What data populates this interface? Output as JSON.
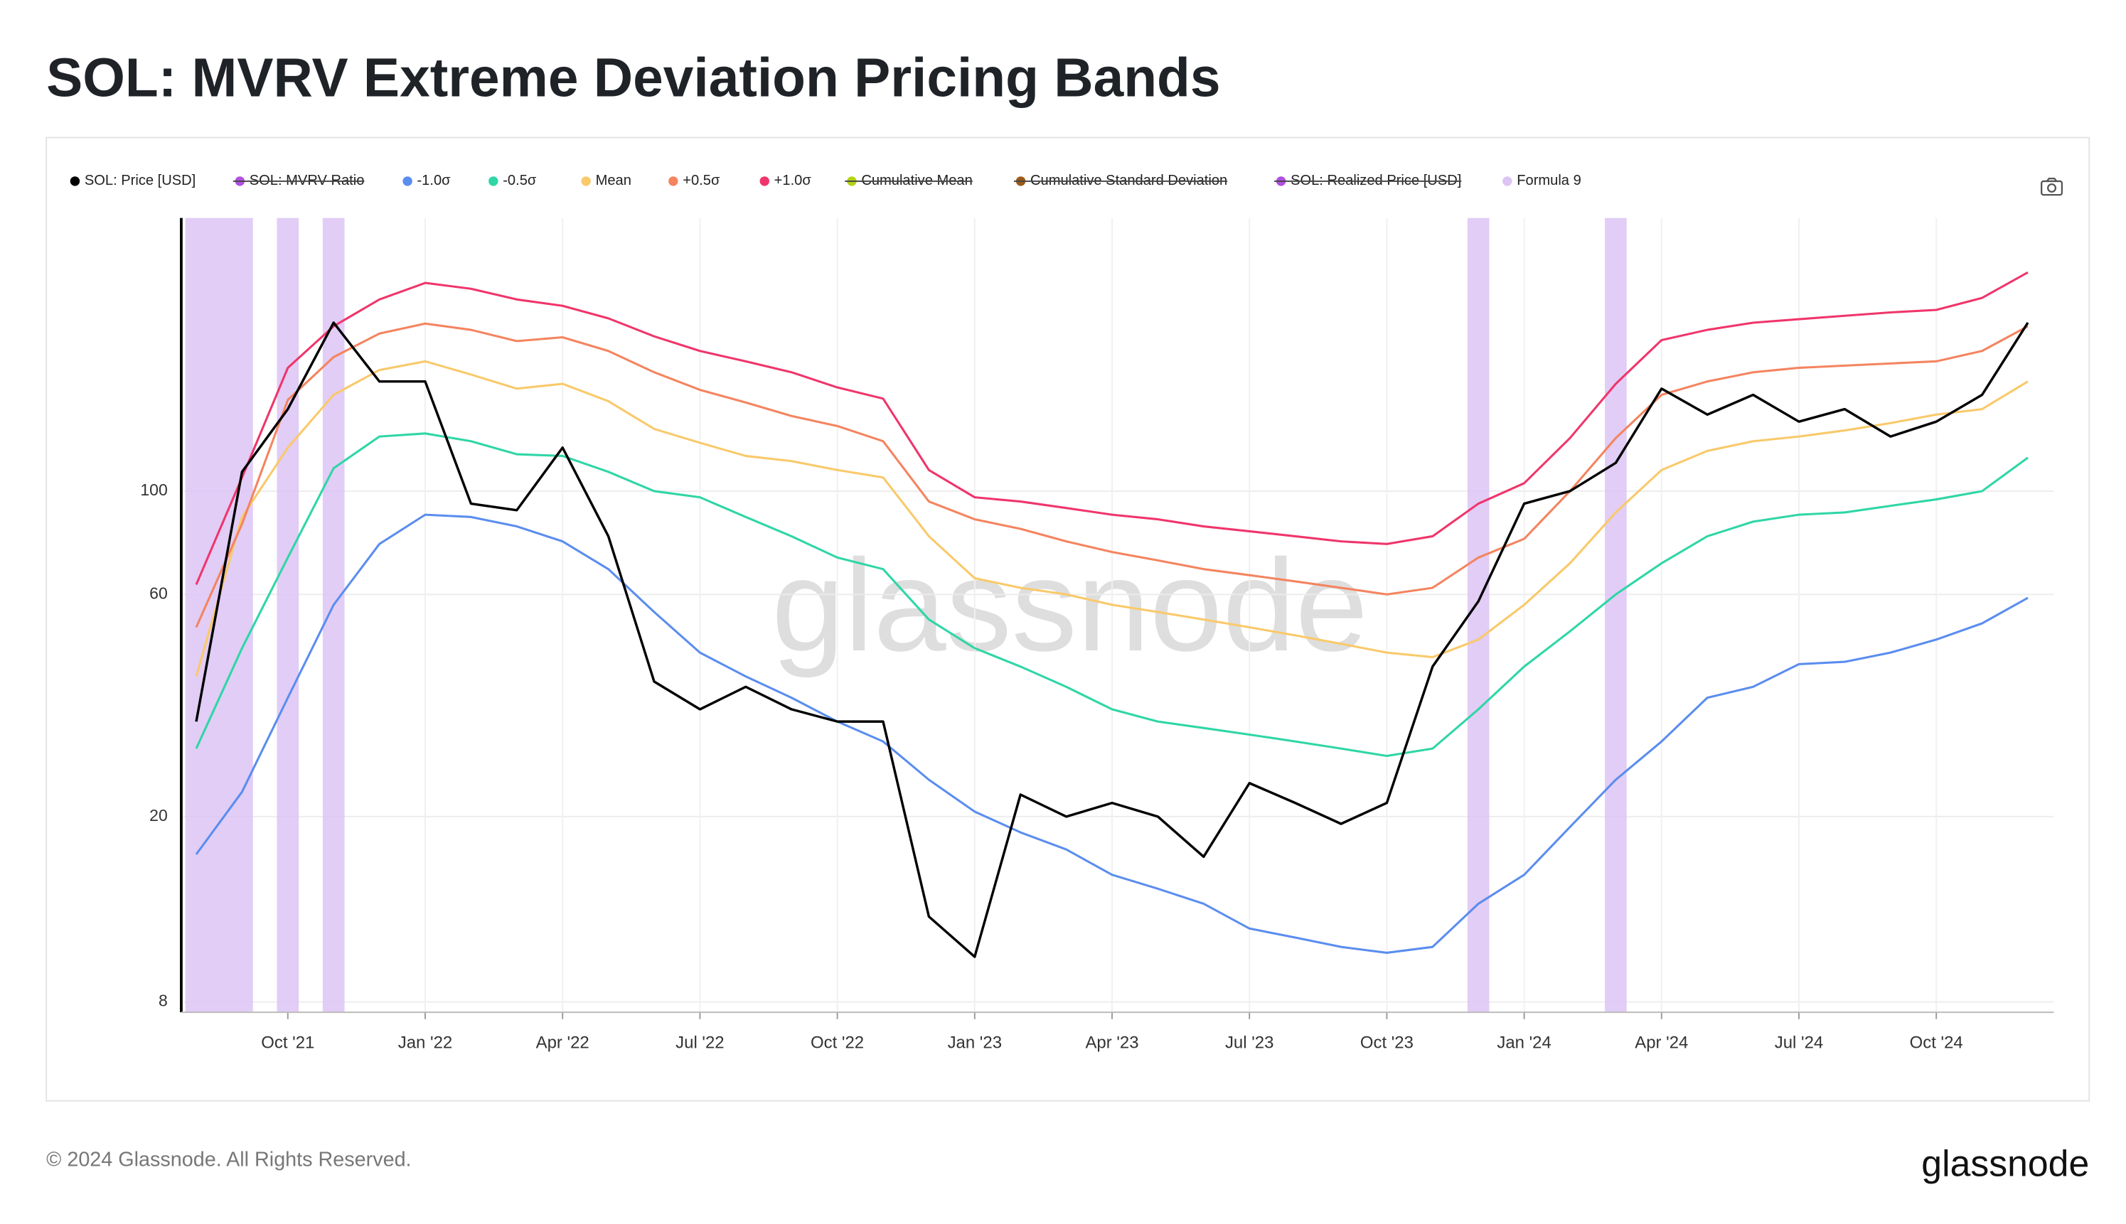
{
  "chart_data": {
    "type": "line",
    "title": "SOL: MVRV Extreme Deviation Pricing Bands",
    "footer": "© 2024 Glassnode. All Rights Reserved.",
    "brand": "glassnode",
    "watermark": "glassnode",
    "log_y": true,
    "grid": true,
    "legend": "top-left",
    "x": [
      "Aug '21",
      "Sep '21",
      "Oct '21",
      "Nov '21",
      "Dec '21",
      "Jan '22",
      "Feb '22",
      "Mar '22",
      "Apr '22",
      "May '22",
      "Jun '22",
      "Jul '22",
      "Aug '22",
      "Sep '22",
      "Oct '22",
      "Nov '22",
      "Dec '22",
      "Jan '23",
      "Feb '23",
      "Mar '23",
      "Apr '23",
      "May '23",
      "Jun '23",
      "Jul '23",
      "Aug '23",
      "Sep '23",
      "Oct '23",
      "Nov '23",
      "Dec '23",
      "Jan '24",
      "Feb '24",
      "Mar '24",
      "Apr '24",
      "May '24",
      "Jun '24",
      "Jul '24",
      "Aug '24",
      "Sep '24",
      "Oct '24",
      "Nov '24",
      "Dec '24"
    ],
    "xticks": [
      "Oct '21",
      "Jan '22",
      "Apr '22",
      "Jul '22",
      "Oct '22",
      "Jan '23",
      "Apr '23",
      "Jul '23",
      "Oct '23",
      "Jan '24",
      "Apr '24",
      "Jul '24",
      "Oct '24"
    ],
    "ylim": [
      7.6,
      386
    ],
    "yticks": [
      8,
      20,
      60,
      100
    ],
    "series": [
      {
        "name": "SOL: Price [USD]",
        "color": "#000000",
        "values": [
          32,
          110,
          150,
          230,
          172,
          172,
          94,
          91,
          124,
          80,
          39,
          34,
          38,
          34,
          32,
          32,
          12.2,
          10,
          22.3,
          20,
          21.4,
          20,
          16.4,
          23.6,
          21.4,
          19.3,
          21.4,
          42,
          58,
          94,
          100,
          115,
          166,
          146,
          161,
          141,
          150,
          131,
          141,
          161,
          230
        ]
      },
      {
        "name": "SOL: MVRV Ratio",
        "color": "#b04fe0",
        "hidden": true
      },
      {
        "name": "-1.0σ",
        "color": "#5b8def",
        "values": [
          16.6,
          22.6,
          36,
          57,
          77,
          89,
          88,
          84,
          78,
          68,
          55,
          45,
          40,
          36,
          32,
          29,
          24,
          20.5,
          18.5,
          17,
          15,
          14,
          13,
          11.5,
          11,
          10.5,
          10.2,
          10.5,
          13,
          15,
          19,
          24,
          29,
          36,
          38,
          42.5,
          43,
          45,
          48,
          52,
          59
        ]
      },
      {
        "name": "-0.5σ",
        "color": "#2fd6a6",
        "values": [
          28,
          46,
          72,
          112,
          131,
          133,
          128,
          120,
          119,
          110,
          100,
          97,
          88,
          80,
          72,
          68,
          53,
          46,
          42,
          38,
          34,
          32,
          31,
          30,
          29,
          28,
          27,
          28,
          34,
          42,
          50,
          60,
          70,
          80,
          86,
          89,
          90,
          93,
          96,
          100,
          118
        ]
      },
      {
        "name": "Mean",
        "color": "#f9c96a",
        "values": [
          40,
          88,
          124,
          161,
          182,
          190,
          178,
          166,
          170,
          156,
          136,
          127,
          119,
          116,
          111,
          107,
          80,
          65,
          62,
          60,
          57,
          55,
          53,
          51,
          49,
          47,
          45,
          44,
          48,
          57,
          70,
          90,
          111,
          122,
          128,
          131,
          135,
          140,
          146,
          150,
          172
        ]
      },
      {
        "name": "+0.5σ",
        "color": "#f4845f",
        "values": [
          51,
          85,
          157,
          194,
          218,
          229,
          222,
          210,
          214,
          200,
          180,
          165,
          155,
          145,
          138,
          128,
          95,
          87,
          83,
          78,
          74,
          71,
          68,
          66,
          64,
          62,
          60,
          62,
          72,
          79,
          100,
          130,
          161,
          172,
          180,
          184,
          186,
          188,
          190,
          200,
          226
        ]
      },
      {
        "name": "+1.0σ",
        "color": "#f0356b",
        "values": [
          63,
          107,
          184,
          226,
          258,
          280,
          272,
          258,
          250,
          235,
          215,
          200,
          190,
          180,
          167,
          158,
          111,
          97,
          95,
          92,
          89,
          87,
          84,
          82,
          80,
          78,
          77,
          80,
          94,
          104,
          130,
          170,
          211,
          222,
          230,
          234,
          238,
          242,
          245,
          260,
          295
        ]
      },
      {
        "name": "Cumulative Mean",
        "color": "#b5d316",
        "hidden": true
      },
      {
        "name": "Cumulative Standard Deviation",
        "color": "#9a5b1a",
        "hidden": true
      },
      {
        "name": "SOL: Realized Price [USD]",
        "color": "#b04fe0",
        "hidden": true
      },
      {
        "name": "Formula 9",
        "color": "#dcc4f5",
        "spans": [
          [
            "Aug '21",
            "Sep '21"
          ],
          [
            "Oct '21",
            "Oct '21"
          ],
          [
            "Nov '21",
            "Nov '21"
          ],
          [
            "Dec '23",
            "Dec '23"
          ],
          [
            "Mar '24",
            "Mar '24"
          ]
        ]
      }
    ]
  }
}
